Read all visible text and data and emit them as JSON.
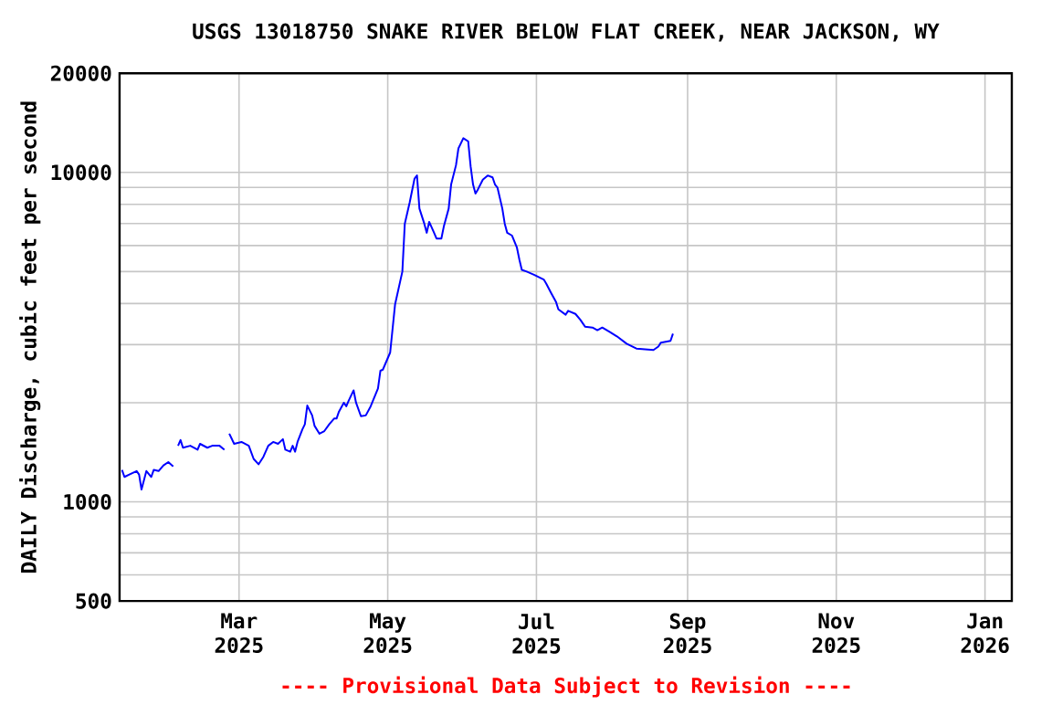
{
  "chart_data": {
    "type": "line",
    "title": "USGS 13018750 SNAKE RIVER BELOW FLAT CREEK, NEAR JACKSON, WY",
    "ylabel": "DAILY Discharge, cubic feet per second",
    "annotations": [
      "---- Provisional Data Subject to Revision ----"
    ],
    "log": "y",
    "grid": true,
    "marker": "none",
    "line_style": "solid",
    "xlim": [
      "2025-01-11",
      "2026-01-12"
    ],
    "xticks": [
      {
        "value": "2025-03-01",
        "label": "Mar 2025"
      },
      {
        "value": "2025-05-01",
        "label": "May 2025"
      },
      {
        "value": "2025-07-01",
        "label": "Jul 2025"
      },
      {
        "value": "2025-09-01",
        "label": "Sep 2025"
      },
      {
        "value": "2025-11-01",
        "label": "Nov 2025"
      },
      {
        "value": "2026-01-01",
        "label": "Jan 2026"
      }
    ],
    "ylim": [
      500,
      20000
    ],
    "yticks": [
      500,
      {
        "value": 600,
        "label": null
      },
      {
        "value": 700,
        "label": null
      },
      {
        "value": 800,
        "label": null
      },
      {
        "value": 900,
        "label": null
      },
      1000,
      {
        "value": 2000,
        "label": null
      },
      {
        "value": 3000,
        "label": null
      },
      {
        "value": 4000,
        "label": null
      },
      {
        "value": 5000,
        "label": null
      },
      {
        "value": 6000,
        "label": null
      },
      {
        "value": 7000,
        "label": null
      },
      {
        "value": 8000,
        "label": null
      },
      {
        "value": 9000,
        "label": null
      },
      10000,
      20000
    ],
    "series": [
      {
        "color": "#0000ff",
        "x": [
          "2025-01-12",
          "2025-01-13",
          "2025-01-15",
          "2025-01-18",
          "2025-01-19",
          "2025-01-20",
          "2025-01-22",
          "2025-01-24",
          "2025-01-25",
          "2025-01-27",
          "2025-01-29",
          "2025-01-31",
          "2025-02-02",
          "2025-02-03",
          "2025-02-04",
          "2025-02-05",
          "2025-02-06",
          "2025-02-09",
          "2025-02-12",
          "2025-02-13",
          "2025-02-16",
          "2025-02-18",
          "2025-02-21",
          "2025-02-23",
          "2025-02-24",
          "2025-02-25",
          "2025-02-27",
          "2025-03-02",
          "2025-03-05",
          "2025-03-07",
          "2025-03-09",
          "2025-03-11",
          "2025-03-13",
          "2025-03-15",
          "2025-03-17",
          "2025-03-19",
          "2025-03-20",
          "2025-03-22",
          "2025-03-23",
          "2025-03-24",
          "2025-03-25",
          "2025-03-27",
          "2025-03-28",
          "2025-03-29",
          "2025-03-31",
          "2025-04-01",
          "2025-04-03",
          "2025-04-05",
          "2025-04-07",
          "2025-04-09",
          "2025-04-10",
          "2025-04-11",
          "2025-04-13",
          "2025-04-14",
          "2025-04-15",
          "2025-04-17",
          "2025-04-18",
          "2025-04-20",
          "2025-04-22",
          "2025-04-24",
          "2025-04-27",
          "2025-04-28",
          "2025-04-29",
          "2025-05-02",
          "2025-05-04",
          "2025-05-07",
          "2025-05-08",
          "2025-05-10",
          "2025-05-12",
          "2025-05-13",
          "2025-05-14",
          "2025-05-16",
          "2025-05-17",
          "2025-05-18",
          "2025-05-20",
          "2025-05-21",
          "2025-05-23",
          "2025-05-24",
          "2025-05-26",
          "2025-05-27",
          "2025-05-29",
          "2025-05-30",
          "2025-06-01",
          "2025-06-03",
          "2025-06-04",
          "2025-06-05",
          "2025-06-06",
          "2025-06-07",
          "2025-06-09",
          "2025-06-11",
          "2025-06-13",
          "2025-06-14",
          "2025-06-15",
          "2025-06-17",
          "2025-06-18",
          "2025-06-19",
          "2025-06-21",
          "2025-06-23",
          "2025-06-24",
          "2025-06-25",
          "2025-06-27",
          "2025-06-30",
          "2025-07-04",
          "2025-07-05",
          "2025-07-07",
          "2025-07-09",
          "2025-07-10",
          "2025-07-13",
          "2025-07-14",
          "2025-07-17",
          "2025-07-19",
          "2025-07-21",
          "2025-07-24",
          "2025-07-26",
          "2025-07-28",
          "2025-07-31",
          "2025-08-03",
          "2025-08-07",
          "2025-08-11",
          "2025-08-18",
          "2025-08-20",
          "2025-08-21",
          "2025-08-25",
          "2025-08-26"
        ],
        "values": [
          1250,
          1190,
          1210,
          1240,
          1210,
          1090,
          1240,
          1190,
          1250,
          1240,
          1290,
          1320,
          1280,
          null,
          1480,
          1540,
          1460,
          1480,
          1440,
          1500,
          1460,
          1480,
          1480,
          1440,
          null,
          1610,
          1500,
          1520,
          1480,
          1350,
          1300,
          1370,
          1480,
          1520,
          1500,
          1550,
          1440,
          1420,
          1480,
          1420,
          1520,
          1660,
          1720,
          1960,
          1830,
          1700,
          1610,
          1640,
          1720,
          1790,
          1790,
          1880,
          2000,
          1950,
          2030,
          2180,
          2000,
          1820,
          1830,
          1950,
          2210,
          2500,
          2520,
          2840,
          3970,
          5000,
          6990,
          8100,
          9580,
          9790,
          7770,
          6990,
          6560,
          7080,
          6560,
          6300,
          6300,
          6850,
          7770,
          9190,
          10520,
          11830,
          12700,
          12430,
          10430,
          9190,
          8630,
          8880,
          9510,
          9790,
          9660,
          9190,
          9000,
          7770,
          6990,
          6560,
          6430,
          5910,
          5440,
          5060,
          5000,
          4890,
          4730,
          4600,
          4310,
          4050,
          3840,
          3700,
          3800,
          3720,
          3570,
          3400,
          3380,
          3320,
          3380,
          3280,
          3180,
          3020,
          2920,
          2890,
          2960,
          3040,
          3080,
          3240
        ]
      }
    ]
  }
}
